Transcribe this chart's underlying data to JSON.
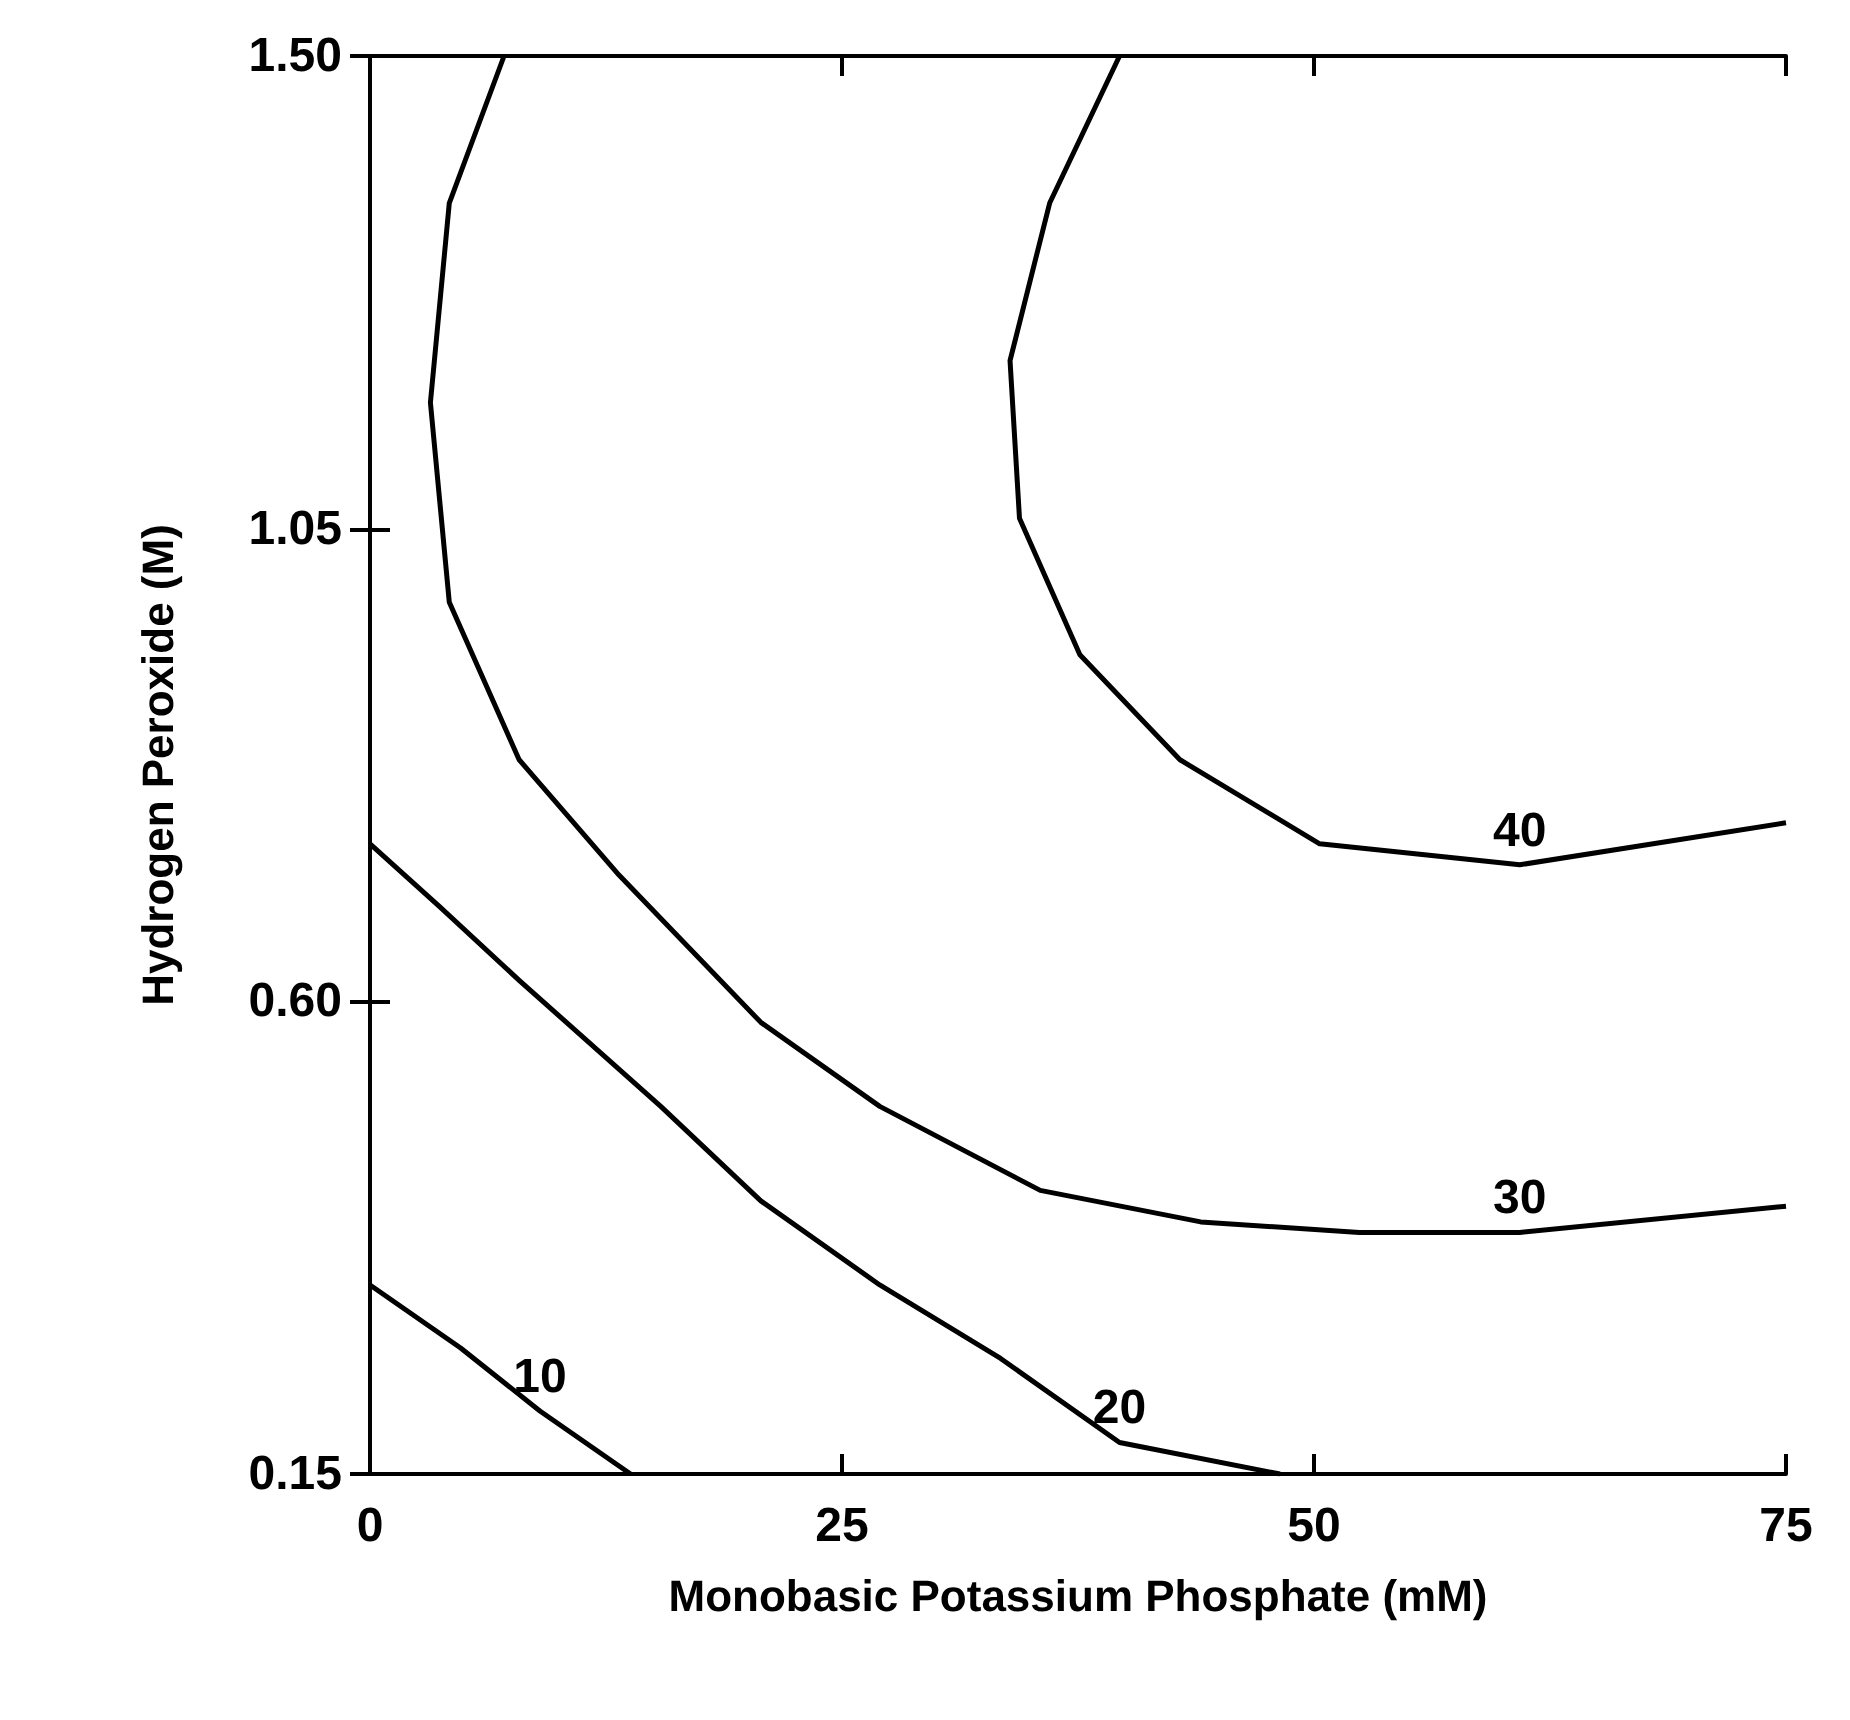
{
  "chart_data": {
    "type": "line",
    "xlabel": "Monobasic Potassium Phosphate (mM)",
    "ylabel": "Hydrogen Peroxide (M)",
    "xlim": [
      0,
      75
    ],
    "xticks": [
      0,
      25,
      50,
      75
    ],
    "ylim": [
      0.15,
      1.5
    ],
    "yticks": [
      {
        "value": 0.15,
        "label": "0.15"
      },
      {
        "value": 0.6,
        "label": "0.60"
      },
      {
        "value": 1.05,
        "label": "1.05"
      },
      {
        "value": 1.5,
        "label": "1.50"
      }
    ],
    "grid": false,
    "legend": false,
    "marker": "none",
    "line_style": "solid",
    "series": [
      {
        "name": "10",
        "color": "#000000",
        "x": [
          0,
          4.8,
          9.0,
          13.8
        ],
        "values": [
          0.33,
          0.27,
          0.21,
          0.15
        ]
      },
      {
        "name": "20",
        "color": "#000000",
        "x": [
          0,
          3.7,
          7.9,
          15.4,
          20.7,
          27.0,
          33.4,
          39.7,
          48.2
        ],
        "values": [
          0.75,
          0.69,
          0.62,
          0.5,
          0.41,
          0.33,
          0.26,
          0.18,
          0.15
        ]
      },
      {
        "name": "30",
        "color": "#000000",
        "x": [
          7.1,
          4.2,
          3.2,
          4.2,
          7.9,
          13.2,
          20.7,
          27.0,
          35.5,
          44.0,
          52.4,
          60.9,
          75
        ],
        "values": [
          1.5,
          1.36,
          1.17,
          0.98,
          0.83,
          0.72,
          0.58,
          0.5,
          0.42,
          0.39,
          0.38,
          0.38,
          0.405
        ]
      },
      {
        "name": "40",
        "color": "#000000",
        "x": [
          39.7,
          36.0,
          33.9,
          34.4,
          37.6,
          42.9,
          50.3,
          60.9,
          75
        ],
        "values": [
          1.5,
          1.36,
          1.21,
          1.06,
          0.93,
          0.83,
          0.75,
          0.73,
          0.77
        ]
      }
    ]
  }
}
